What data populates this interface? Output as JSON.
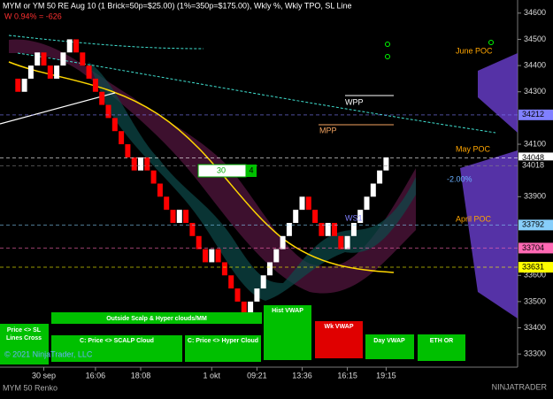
{
  "chart_data": {
    "type": "renko",
    "title": "MYM or YM 50 RE Aug 10 (1 Brick=50p=$25.00) (1%=350p=$175.00), Wkly %, Wkly TPO, SL Line",
    "subtitle": "W 0.94% = -626",
    "values": [
      34350,
      34300,
      34350,
      34400,
      34450,
      34400,
      34350,
      34400,
      34450,
      34500,
      34450,
      34400,
      34350,
      34300,
      34250,
      34200,
      34150,
      34100,
      34050,
      34000,
      34050,
      34000,
      33950,
      33900,
      33850,
      33800,
      33850,
      33800,
      33750,
      33700,
      33650,
      33700,
      33650,
      33600,
      33550,
      33500,
      33450,
      33500,
      33550,
      33600,
      33650,
      33700,
      33750,
      33800,
      33850,
      33900,
      33850,
      33800,
      33750,
      33800,
      33750,
      33700,
      33750,
      33800,
      33850,
      33900,
      33950,
      34000,
      34050
    ],
    "up_color": "#ffffff",
    "down_color": "#ff0000",
    "ylim": [
      33250,
      34650
    ],
    "yticks": [
      34600,
      34500,
      34400,
      34300,
      34100,
      33900,
      33600,
      33500,
      33400,
      33300
    ],
    "xticks": [
      {
        "value": 5,
        "label": "30 sep"
      },
      {
        "value": 13,
        "label": "16:06"
      },
      {
        "value": 20,
        "label": "18:08"
      },
      {
        "value": 31,
        "label": "1 okt"
      },
      {
        "value": 38,
        "label": "09:21"
      },
      {
        "value": 45,
        "label": "13:36"
      },
      {
        "value": 52,
        "label": "16:15"
      },
      {
        "value": 58,
        "label": "19:15"
      }
    ],
    "price_labels": [
      {
        "value": 34212,
        "color": "#8080ff"
      },
      {
        "value": 34048,
        "color": "#ffffff"
      },
      {
        "value": 34018,
        "color": "#000000"
      },
      {
        "value": 33792,
        "color": "#87cefa"
      },
      {
        "value": 33704,
        "color": "#ff69b4"
      },
      {
        "value": 33631,
        "color": "#ffff00"
      }
    ],
    "annotations": {
      "june_poc": "June POC",
      "may_poc": "May POC",
      "april_poc": "April POC",
      "wpp": "WPP",
      "mpp": "MPP",
      "ws1": "WS1",
      "pct": "-2.00%",
      "box_left": "30",
      "box_right": "4"
    }
  },
  "buttons": {
    "sl_1": "Price <> SL",
    "sl_2": "Lines Cross",
    "outside": "Outside Scalp & Hyper clouds/MM",
    "scalp": "C: Price <> SCALP Cloud",
    "hyper": "C: Price <> Hyper Cloud",
    "hist": "Hist VWAP",
    "wk": "Wk VWAP",
    "day": "Day VWAP",
    "eth": "ETH OR"
  },
  "footer": {
    "copyright": "© 2021 NinjaTrader, LLC",
    "instrument": "MYM 50 Renko",
    "brand": "NINJATRADER"
  }
}
